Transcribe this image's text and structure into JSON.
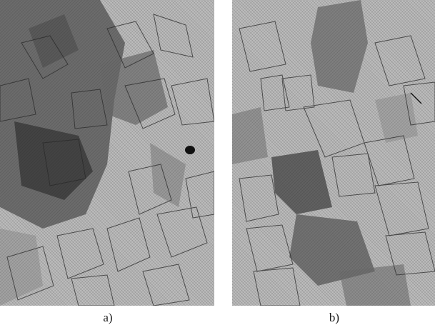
{
  "figure": {
    "panels": [
      {
        "id": "a",
        "caption": "a)"
      },
      {
        "id": "b",
        "caption": "b)"
      }
    ]
  }
}
